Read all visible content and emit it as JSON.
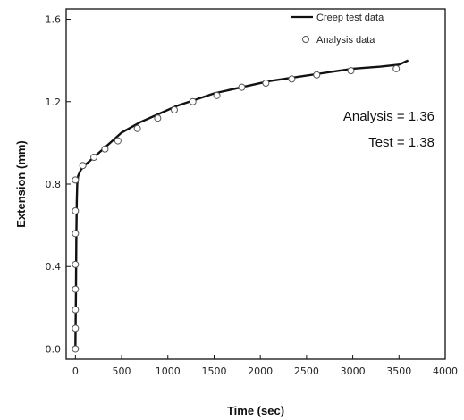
{
  "chart_data": {
    "type": "line",
    "title": "",
    "xlabel": "Time (sec)",
    "ylabel": "Extension (mm)",
    "xlim": [
      -100,
      4000
    ],
    "ylim": [
      -0.05,
      1.65
    ],
    "x_ticks": [
      0,
      500,
      1000,
      1500,
      2000,
      2500,
      3000,
      3500,
      4000
    ],
    "y_ticks": [
      0.0,
      0.4,
      0.8,
      1.2,
      1.6
    ],
    "x_tick_labels": [
      "0",
      "500",
      "1000",
      "1500",
      "2000",
      "2500",
      "3000",
      "3500",
      "4000"
    ],
    "y_tick_labels": [
      "0.0",
      "0.4",
      "0.8",
      "1.2",
      "1.6"
    ],
    "legend": {
      "position": "top-right",
      "entries": [
        "Creep test data",
        "Analysis data"
      ]
    },
    "series": [
      {
        "name": "Creep test data",
        "style": "line",
        "color": "#111111",
        "points": [
          [
            0,
            0.0
          ],
          [
            5,
            0.25
          ],
          [
            10,
            0.55
          ],
          [
            15,
            0.72
          ],
          [
            20,
            0.8
          ],
          [
            30,
            0.84
          ],
          [
            60,
            0.87
          ],
          [
            100,
            0.89
          ],
          [
            200,
            0.93
          ],
          [
            300,
            0.97
          ],
          [
            400,
            1.01
          ],
          [
            500,
            1.05
          ],
          [
            700,
            1.1
          ],
          [
            900,
            1.14
          ],
          [
            1100,
            1.18
          ],
          [
            1300,
            1.21
          ],
          [
            1500,
            1.24
          ],
          [
            1800,
            1.27
          ],
          [
            2100,
            1.3
          ],
          [
            2400,
            1.32
          ],
          [
            2700,
            1.34
          ],
          [
            3000,
            1.36
          ],
          [
            3300,
            1.37
          ],
          [
            3500,
            1.38
          ],
          [
            3600,
            1.4
          ]
        ]
      },
      {
        "name": "Analysis data",
        "style": "markers",
        "marker": "open-circle",
        "points": [
          [
            0,
            0.0
          ],
          [
            0,
            0.1
          ],
          [
            0,
            0.19
          ],
          [
            0,
            0.29
          ],
          [
            0,
            0.41
          ],
          [
            0,
            0.56
          ],
          [
            0,
            0.67
          ],
          [
            0,
            0.82
          ],
          [
            80,
            0.89
          ],
          [
            200,
            0.93
          ],
          [
            320,
            0.97
          ],
          [
            460,
            1.01
          ],
          [
            670,
            1.07
          ],
          [
            890,
            1.12
          ],
          [
            1070,
            1.16
          ],
          [
            1270,
            1.2
          ],
          [
            1530,
            1.23
          ],
          [
            1800,
            1.27
          ],
          [
            2060,
            1.29
          ],
          [
            2340,
            1.31
          ],
          [
            2610,
            1.33
          ],
          [
            2980,
            1.35
          ],
          [
            3470,
            1.36
          ]
        ]
      }
    ],
    "annotations": [
      {
        "label": "Analysis = 1.36"
      },
      {
        "label": "Test = 1.38"
      }
    ]
  }
}
